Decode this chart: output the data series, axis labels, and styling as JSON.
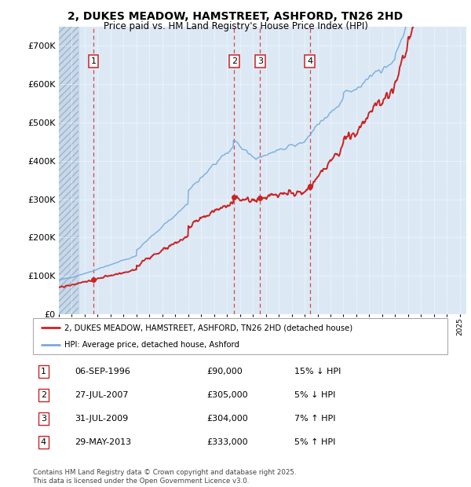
{
  "title": "2, DUKES MEADOW, HAMSTREET, ASHFORD, TN26 2HD",
  "subtitle": "Price paid vs. HM Land Registry's House Price Index (HPI)",
  "background_color": "#dce9f5",
  "hpi_line_color": "#7aaadd",
  "price_line_color": "#cc2222",
  "sale_marker_color": "#cc2222",
  "ylim": [
    0,
    750000
  ],
  "yticks": [
    0,
    100000,
    200000,
    300000,
    400000,
    500000,
    600000,
    700000
  ],
  "ytick_labels": [
    "£0",
    "£100K",
    "£200K",
    "£300K",
    "£400K",
    "£500K",
    "£600K",
    "£700K"
  ],
  "xstart": 1994.0,
  "xend": 2025.5,
  "sales": [
    {
      "num": 1,
      "year": 1996.67,
      "price": 90000
    },
    {
      "num": 2,
      "year": 2007.56,
      "price": 305000
    },
    {
      "num": 3,
      "year": 2009.56,
      "price": 304000
    },
    {
      "num": 4,
      "year": 2013.41,
      "price": 333000
    }
  ],
  "legend_entries": [
    {
      "label": "2, DUKES MEADOW, HAMSTREET, ASHFORD, TN26 2HD (detached house)",
      "color": "#cc2222"
    },
    {
      "label": "HPI: Average price, detached house, Ashford",
      "color": "#7aaadd"
    }
  ],
  "table_rows": [
    {
      "num": 1,
      "date": "06-SEP-1996",
      "price": "£90,000",
      "info": "15% ↓ HPI"
    },
    {
      "num": 2,
      "date": "27-JUL-2007",
      "price": "£305,000",
      "info": "5% ↓ HPI"
    },
    {
      "num": 3,
      "date": "31-JUL-2009",
      "price": "£304,000",
      "info": "7% ↑ HPI"
    },
    {
      "num": 4,
      "date": "29-MAY-2013",
      "price": "£333,000",
      "info": "5% ↑ HPI"
    }
  ],
  "footer": "Contains HM Land Registry data © Crown copyright and database right 2025.\nThis data is licensed under the Open Government Licence v3.0."
}
